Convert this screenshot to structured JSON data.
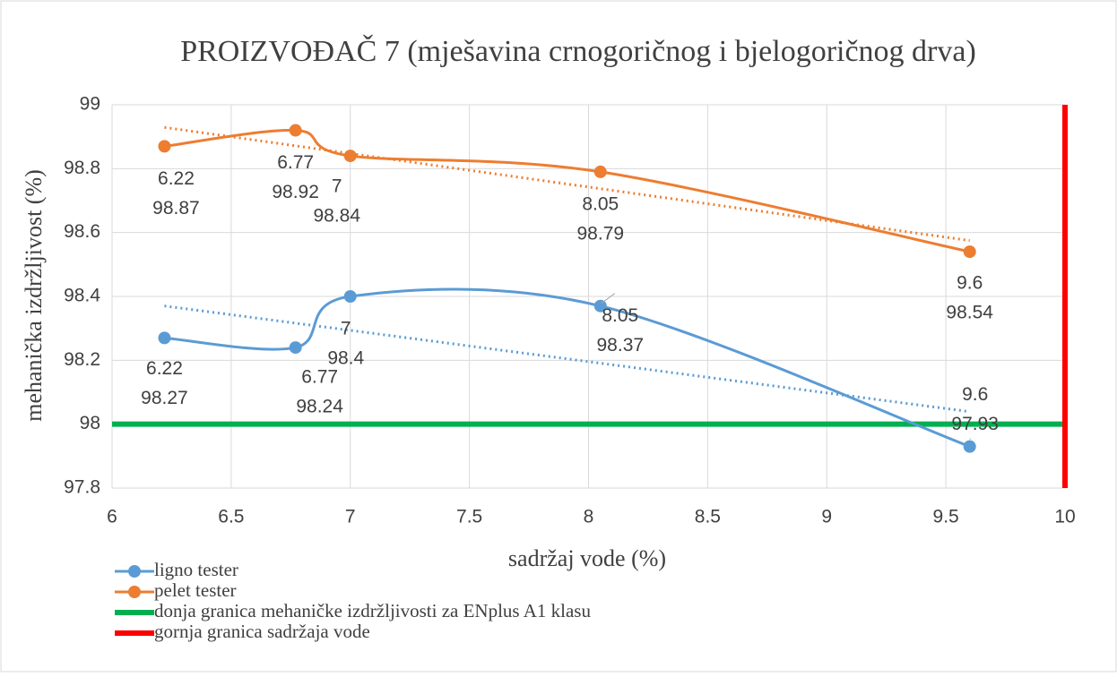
{
  "chart_data": {
    "type": "scatter",
    "title": "PROIZVOĐAČ 7 (mješavina crnogoričnog i bjelogoričnog drva)",
    "x_label": "sadržaj vode (%)",
    "y_label": "mehanička izdržljivost (%)",
    "x": [
      6.22,
      6.77,
      7,
      8.05,
      9.6
    ],
    "series": [
      {
        "name": "ligno tester",
        "color": "#5b9bd5",
        "values": [
          98.27,
          98.24,
          98.4,
          98.37,
          97.93
        ]
      },
      {
        "name": "pelet tester",
        "color": "#ed7d31",
        "values": [
          98.87,
          98.92,
          98.84,
          98.79,
          98.54
        ]
      }
    ],
    "reference_lines": [
      {
        "name": "donja granica mehaničke izdržljivosti za ENplus A1 klasu",
        "color": "#00b050",
        "y": 98
      },
      {
        "name": "gornja granica sadržaja vode",
        "color": "#ff0000",
        "x": 10
      }
    ],
    "smooth": true,
    "trendline": "linear",
    "xlim": [
      6,
      10
    ],
    "xticks": [
      6,
      6.5,
      7,
      7.5,
      8,
      8.5,
      9,
      9.5,
      10
    ],
    "ylim": [
      97.8,
      99
    ],
    "yticks": [
      97.8,
      98,
      98.2,
      98.4,
      98.6,
      98.8,
      99
    ],
    "grid": true,
    "legend": "bottom-left"
  }
}
